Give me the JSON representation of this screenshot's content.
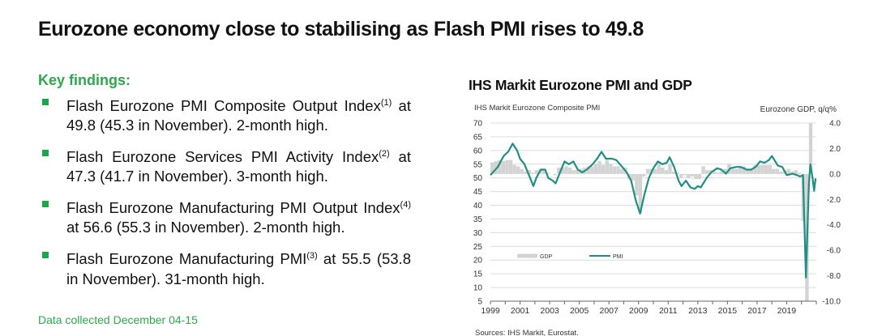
{
  "title": "Eurozone economy close to stabilising as Flash PMI rises to 49.8",
  "key_findings": {
    "heading": "Key findings:",
    "items": [
      {
        "text": "Flash Eurozone PMI Composite Output Index",
        "sup": "(1)",
        "rest": " at 49.8 (45.3 in November). 2-month high."
      },
      {
        "text": "Flash Eurozone Services PMI Activity Index",
        "sup": "(2)",
        "rest": " at 47.3 (41.7 in November). 3-month high."
      },
      {
        "text": "Flash Eurozone Manufacturing PMI Output Index",
        "sup": "(4)",
        "rest": " at 56.6 (55.3 in November). 2-month high."
      },
      {
        "text": "Flash Eurozone Manufacturing PMI",
        "sup": "(3)",
        "rest": " at 55.5 (53.8 in November). 31-month high."
      }
    ],
    "note": "Data collected December 04-15"
  },
  "colors": {
    "accent_green": "#2aaa4a",
    "pmi_line": "#1f8f84",
    "gdp_bar": "#d3d3d3"
  },
  "chart_data": {
    "type": "bar+line",
    "title": "IHS Markit Eurozone PMI and GDP",
    "ylabel_left": "IHS Markit Eurozone Composite PMI",
    "ylabel_right": "Eurozone GDP, q/q%",
    "source": "Sources: IHS Markit, Eurostat.",
    "ylim_left": [
      5,
      70
    ],
    "ylim_right": [
      -10,
      4
    ],
    "yticks_left": [
      "70",
      "65",
      "60",
      "55",
      "50",
      "45",
      "40",
      "35",
      "30",
      "25",
      "20",
      "15",
      "10",
      "5"
    ],
    "yticks_right": [
      "4.0",
      "2.0",
      "0.0",
      "-2.0",
      "-4.0",
      "-6.0",
      "-8.0",
      "-10.0"
    ],
    "xticks": [
      "1999",
      "2001",
      "2003",
      "2005",
      "2007",
      "2009",
      "2011",
      "2013",
      "2015",
      "2017",
      "2019"
    ],
    "grid": true,
    "legend": {
      "placement": "bottom-left",
      "entries": [
        "GDP",
        "PMI"
      ]
    },
    "gdp": {
      "name": "GDP",
      "start_year": 1999,
      "quarterly": [
        0.9,
        1.0,
        1.1,
        1.0,
        1.1,
        1.1,
        0.7,
        0.6,
        0.4,
        0.2,
        0.3,
        0.1,
        0.3,
        0.4,
        0.4,
        0.1,
        0.0,
        -0.1,
        0.5,
        0.5,
        0.6,
        0.5,
        0.3,
        0.3,
        0.4,
        0.5,
        0.6,
        0.6,
        0.8,
        1.0,
        0.7,
        1.1,
        0.8,
        0.6,
        0.6,
        0.4,
        0.5,
        -0.4,
        -0.5,
        -1.7,
        -3.1,
        -0.2,
        0.4,
        0.4,
        0.4,
        1.0,
        0.5,
        0.3,
        0.8,
        0.2,
        0.1,
        -0.3,
        -0.1,
        -0.3,
        -0.2,
        -0.4,
        -0.4,
        0.6,
        0.3,
        0.3,
        0.2,
        0.1,
        0.3,
        0.4,
        0.8,
        0.4,
        0.4,
        0.5,
        0.6,
        0.3,
        0.4,
        0.7,
        0.7,
        0.7,
        0.7,
        0.7,
        0.4,
        0.4,
        0.2,
        0.3,
        0.4,
        0.2,
        0.3,
        0.1,
        -3.7,
        -11.7,
        12.5
      ]
    },
    "pmi": {
      "name": "PMI",
      "points": [
        [
          1999.0,
          51
        ],
        [
          1999.5,
          54
        ],
        [
          1999.9,
          58
        ],
        [
          2000.2,
          59.5
        ],
        [
          2000.5,
          62.5
        ],
        [
          2000.8,
          60
        ],
        [
          2001.0,
          57
        ],
        [
          2001.3,
          55
        ],
        [
          2001.6,
          51
        ],
        [
          2001.9,
          47
        ],
        [
          2002.1,
          50
        ],
        [
          2002.4,
          53
        ],
        [
          2002.7,
          53
        ],
        [
          2002.9,
          50
        ],
        [
          2003.2,
          49
        ],
        [
          2003.4,
          48
        ],
        [
          2003.7,
          52
        ],
        [
          2004.0,
          56
        ],
        [
          2004.3,
          55
        ],
        [
          2004.6,
          56
        ],
        [
          2004.9,
          53
        ],
        [
          2005.2,
          52
        ],
        [
          2005.5,
          53
        ],
        [
          2005.9,
          55
        ],
        [
          2006.2,
          57
        ],
        [
          2006.5,
          59.5
        ],
        [
          2006.8,
          57
        ],
        [
          2007.2,
          57
        ],
        [
          2007.5,
          56.5
        ],
        [
          2007.9,
          54
        ],
        [
          2008.2,
          52
        ],
        [
          2008.5,
          49
        ],
        [
          2008.8,
          42
        ],
        [
          2009.1,
          37
        ],
        [
          2009.4,
          44
        ],
        [
          2009.7,
          50
        ],
        [
          2010.0,
          53.5
        ],
        [
          2010.3,
          56
        ],
        [
          2010.6,
          55
        ],
        [
          2010.9,
          55.5
        ],
        [
          2011.1,
          57.5
        ],
        [
          2011.4,
          54
        ],
        [
          2011.7,
          49
        ],
        [
          2011.9,
          47
        ],
        [
          2012.2,
          49
        ],
        [
          2012.5,
          46.5
        ],
        [
          2012.8,
          46
        ],
        [
          2013.0,
          47
        ],
        [
          2013.2,
          46.5
        ],
        [
          2013.6,
          50
        ],
        [
          2013.9,
          52
        ],
        [
          2014.3,
          53.5
        ],
        [
          2014.6,
          53
        ],
        [
          2014.9,
          51.5
        ],
        [
          2015.2,
          53.5
        ],
        [
          2015.6,
          54
        ],
        [
          2015.9,
          54
        ],
        [
          2016.3,
          53
        ],
        [
          2016.6,
          53
        ],
        [
          2016.9,
          54
        ],
        [
          2017.2,
          56
        ],
        [
          2017.5,
          55.5
        ],
        [
          2017.8,
          56.5
        ],
        [
          2018.0,
          58
        ],
        [
          2018.4,
          54.5
        ],
        [
          2018.7,
          54
        ],
        [
          2019.0,
          51
        ],
        [
          2019.4,
          51.5
        ],
        [
          2019.7,
          51
        ],
        [
          2019.9,
          50.5
        ],
        [
          2020.1,
          51
        ],
        [
          2020.3,
          13.6
        ],
        [
          2020.5,
          48
        ],
        [
          2020.6,
          54.9
        ],
        [
          2020.75,
          50
        ],
        [
          2020.85,
          45.3
        ],
        [
          2020.95,
          49.8
        ]
      ]
    }
  }
}
